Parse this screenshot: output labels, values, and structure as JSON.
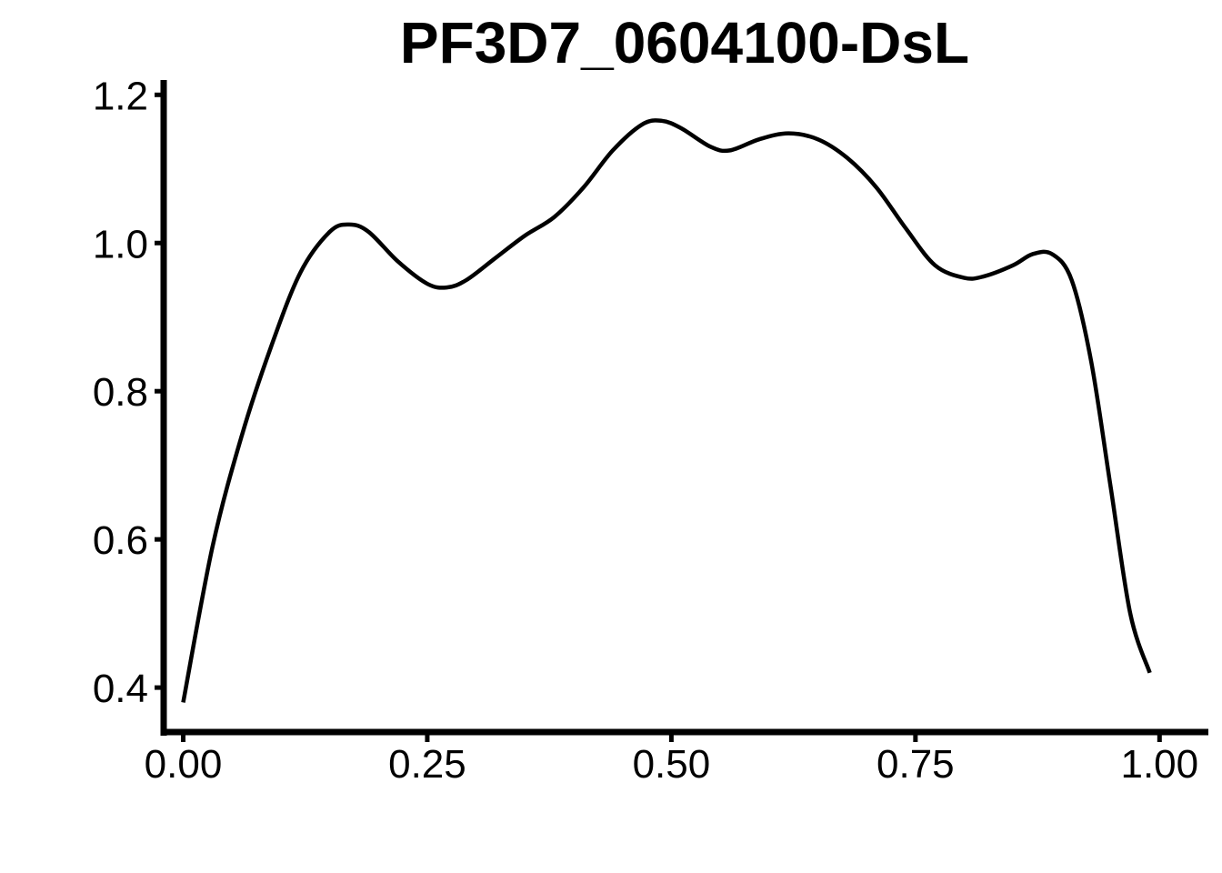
{
  "chart_data": {
    "type": "line",
    "title": "PF3D7_0604100-DsL",
    "xlabel": "",
    "ylabel": "",
    "xlim": [
      -0.02,
      1.05
    ],
    "ylim": [
      0.34,
      1.22
    ],
    "x_ticks": [
      0.0,
      0.25,
      0.5,
      0.75,
      1.0
    ],
    "x_tick_labels": [
      "0.00",
      "0.25",
      "0.50",
      "0.75",
      "1.00"
    ],
    "y_ticks": [
      0.4,
      0.6,
      0.8,
      1.0,
      1.2
    ],
    "y_tick_labels": [
      "0.4",
      "0.6",
      "0.8",
      "1.0",
      "1.2"
    ],
    "grid": false,
    "series": [
      {
        "color": "#000000",
        "x": [
          0.0,
          0.03,
          0.06,
          0.09,
          0.12,
          0.15,
          0.17,
          0.19,
          0.22,
          0.25,
          0.27,
          0.29,
          0.32,
          0.35,
          0.38,
          0.41,
          0.44,
          0.47,
          0.49,
          0.51,
          0.54,
          0.56,
          0.59,
          0.62,
          0.65,
          0.68,
          0.71,
          0.74,
          0.77,
          0.8,
          0.82,
          0.85,
          0.87,
          0.89,
          0.91,
          0.93,
          0.95,
          0.97,
          0.99
        ],
        "values": [
          0.38,
          0.59,
          0.74,
          0.86,
          0.96,
          1.015,
          1.025,
          1.015,
          0.975,
          0.945,
          0.94,
          0.95,
          0.98,
          1.01,
          1.035,
          1.075,
          1.125,
          1.16,
          1.165,
          1.155,
          1.13,
          1.125,
          1.14,
          1.148,
          1.14,
          1.115,
          1.075,
          1.02,
          0.97,
          0.953,
          0.955,
          0.97,
          0.985,
          0.985,
          0.95,
          0.84,
          0.67,
          0.5,
          0.42
        ]
      }
    ]
  }
}
